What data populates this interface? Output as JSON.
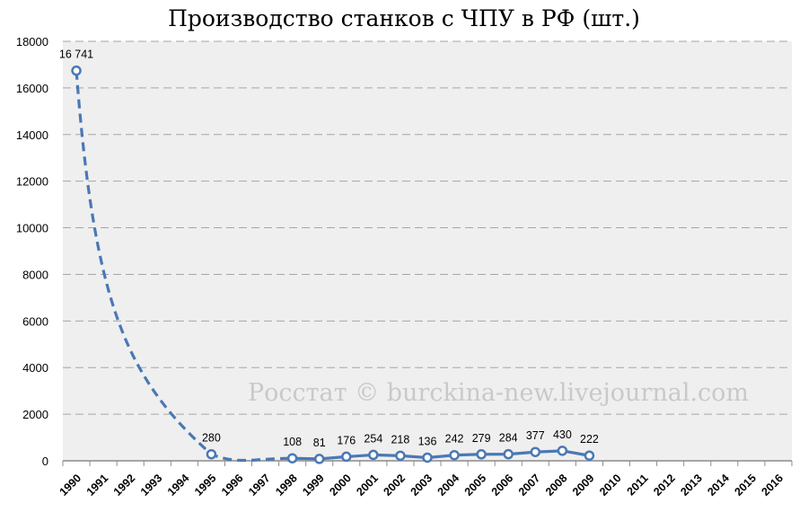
{
  "title": "Производство станков с ЧПУ в РФ (шт.)",
  "watermark": "Росстат © burckina-new.livejournal.com",
  "colors": {
    "series": "#4a78b5",
    "plot_bg": "#efefef",
    "grid": "#a6a6a6"
  },
  "chart_data": {
    "type": "line",
    "title": "Производство станков с ЧПУ в РФ (шт.)",
    "xlabel": "",
    "ylabel": "",
    "ylim": [
      0,
      18000
    ],
    "yticks": [
      0,
      2000,
      4000,
      6000,
      8000,
      10000,
      12000,
      14000,
      16000,
      18000
    ],
    "categories": [
      "1990",
      "1991",
      "1992",
      "1993",
      "1994",
      "1995",
      "1996",
      "1997",
      "1998",
      "1999",
      "2000",
      "2001",
      "2002",
      "2003",
      "2004",
      "2005",
      "2006",
      "2007",
      "2008",
      "2009",
      "2010",
      "2011",
      "2012",
      "2013",
      "2014",
      "2015",
      "2016"
    ],
    "grid": true,
    "legend": "none",
    "series": [
      {
        "points": [
          {
            "x": "1990",
            "y": 16741,
            "label": "16 741"
          },
          {
            "x": "1995",
            "y": 280,
            "label": "280"
          },
          {
            "x": "1998",
            "y": 108,
            "label": "108"
          },
          {
            "x": "1999",
            "y": 81,
            "label": "81"
          },
          {
            "x": "2000",
            "y": 176,
            "label": "176"
          },
          {
            "x": "2001",
            "y": 254,
            "label": "254"
          },
          {
            "x": "2002",
            "y": 218,
            "label": "218"
          },
          {
            "x": "2003",
            "y": 136,
            "label": "136"
          },
          {
            "x": "2004",
            "y": 242,
            "label": "242"
          },
          {
            "x": "2005",
            "y": 279,
            "label": "279"
          },
          {
            "x": "2006",
            "y": 284,
            "label": "284"
          },
          {
            "x": "2007",
            "y": 377,
            "label": "377"
          },
          {
            "x": "2008",
            "y": 430,
            "label": "430"
          },
          {
            "x": "2009",
            "y": 222,
            "label": "222"
          }
        ]
      }
    ]
  }
}
